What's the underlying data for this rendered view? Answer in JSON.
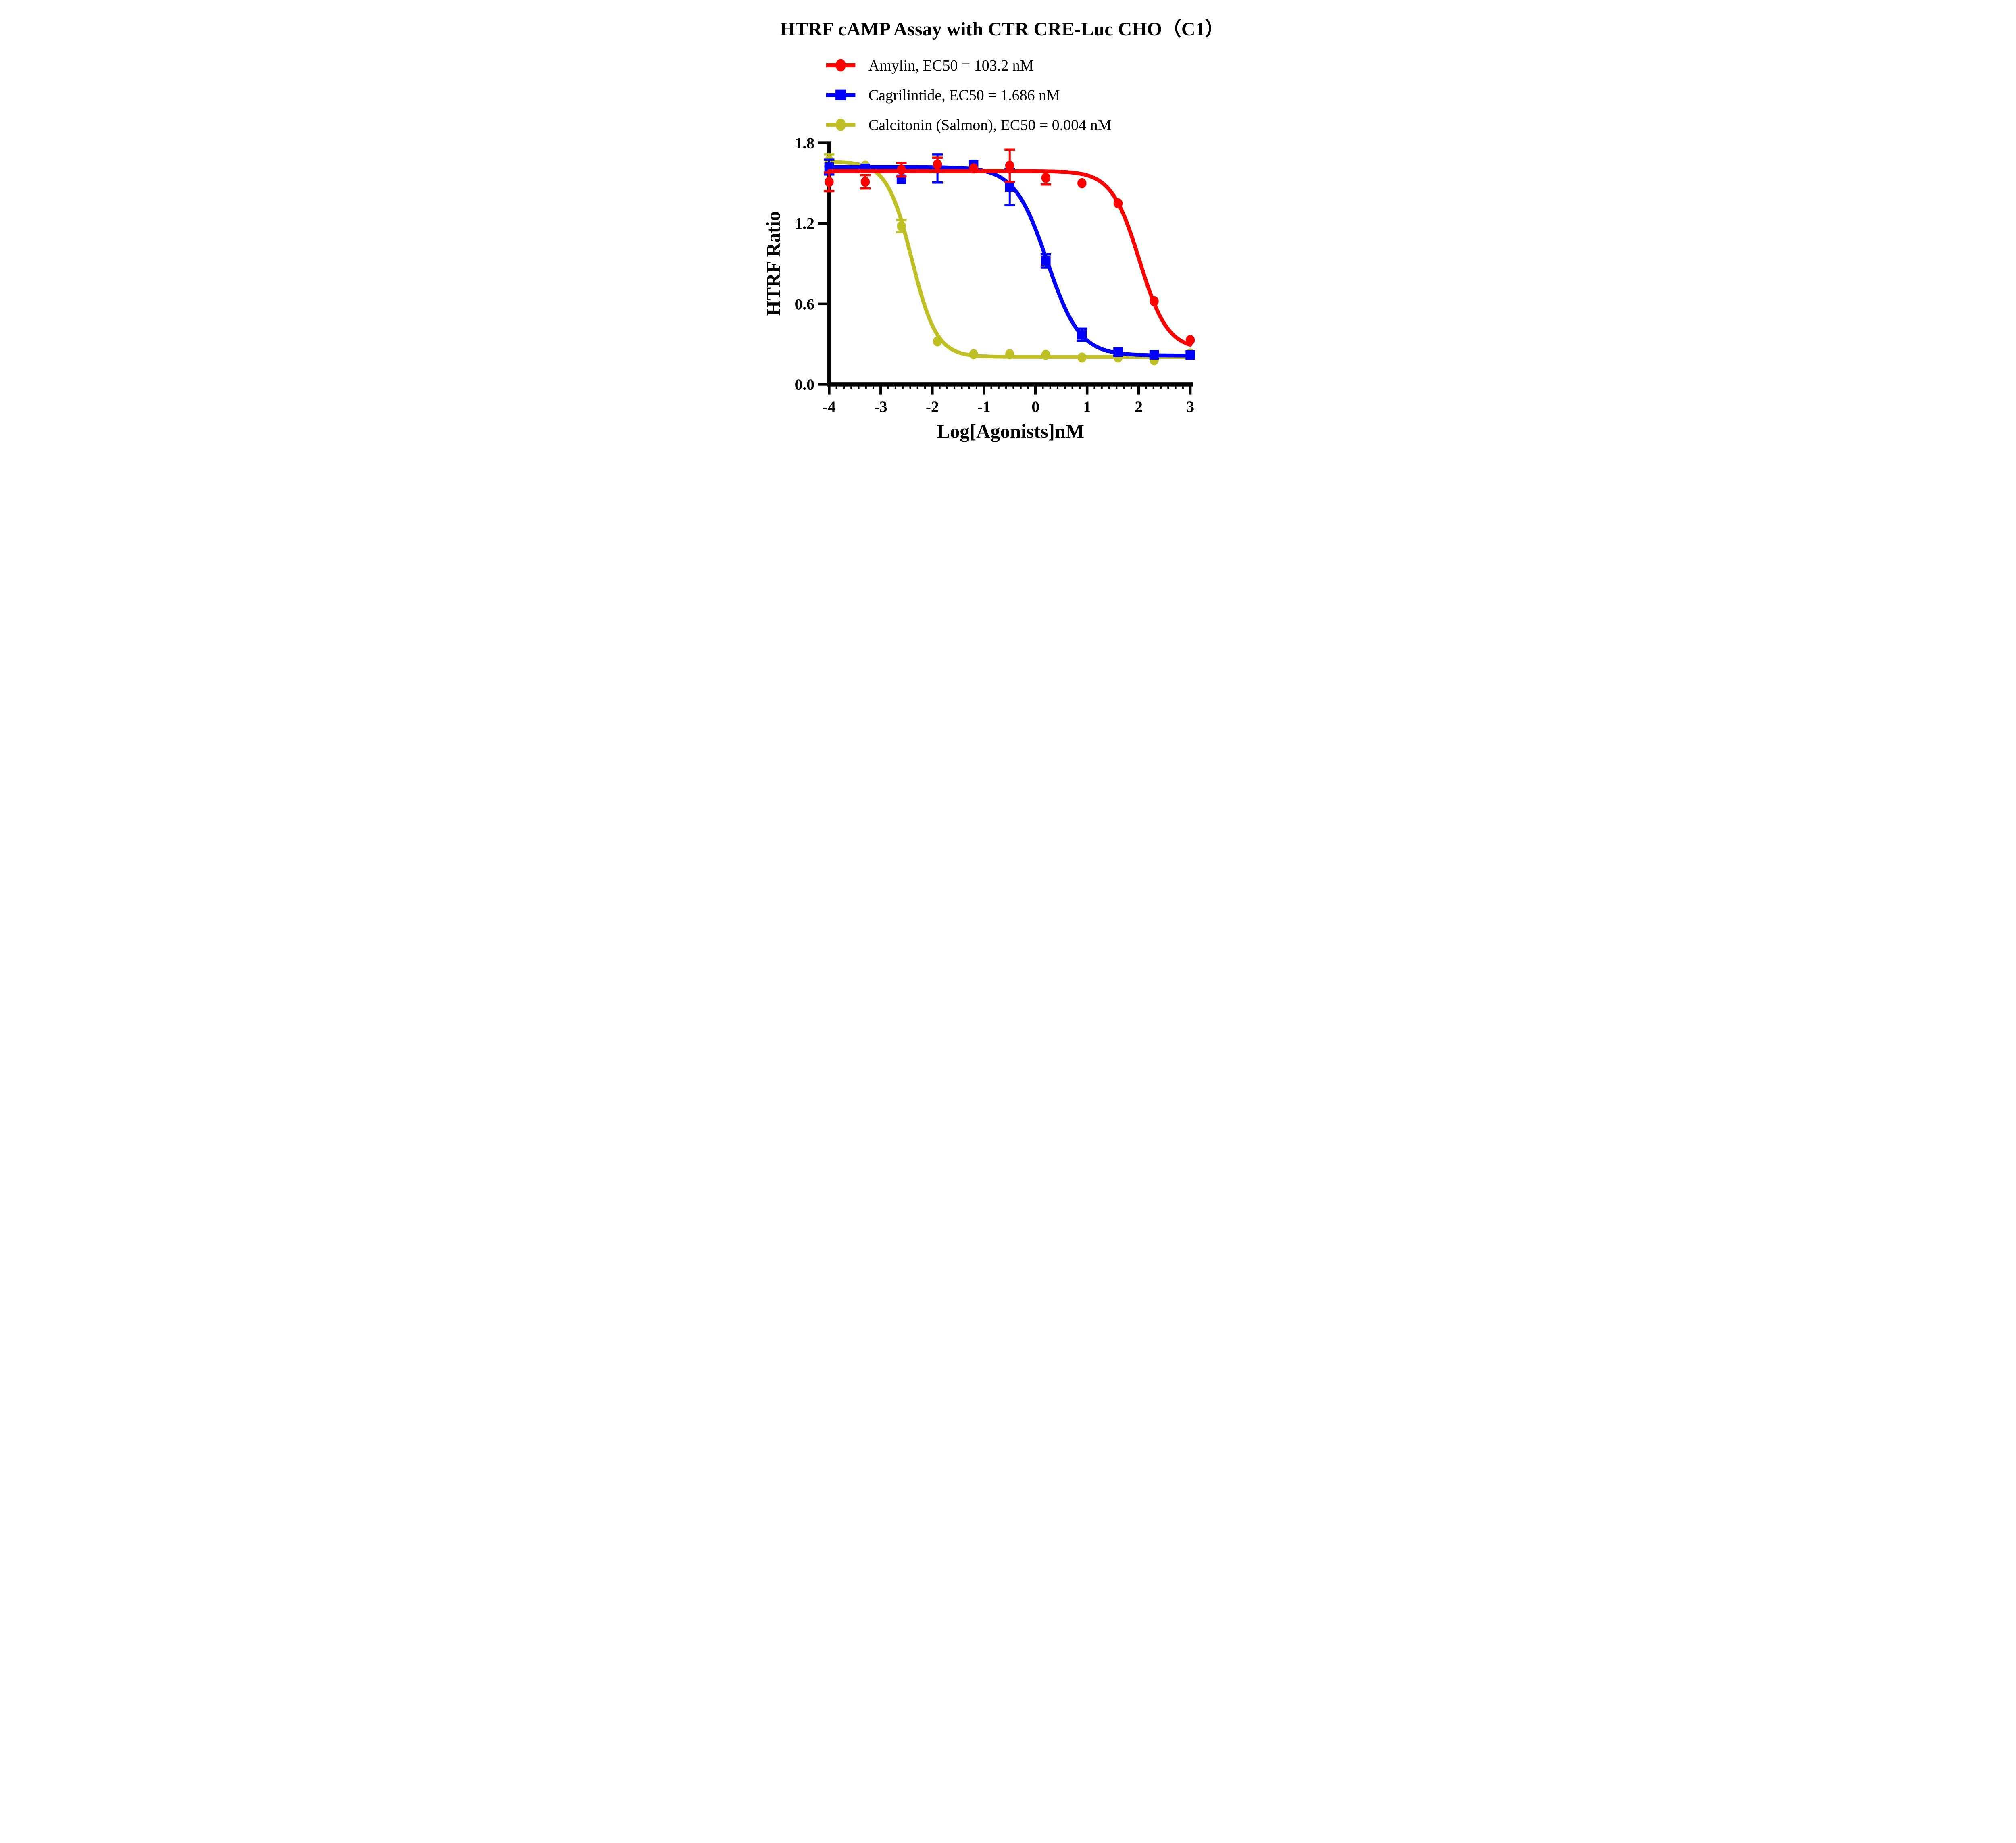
{
  "title": "HTRF cAMP Assay with CTR CRE-Luc CHO（C1）",
  "colors": {
    "amylin": "#FF0000",
    "cagrilintide": "#0000FF",
    "calcitonin_salmon": "#BFBF26",
    "axis": "#000000",
    "background": "#FFFFFF"
  },
  "chart_data": {
    "type": "line",
    "title": "HTRF cAMP Assay with CTR CRE-Luc CHO（C1）",
    "xlabel": "Log[Agonists]nM",
    "ylabel": "HTRF Ratio",
    "xlim": [
      -4,
      3
    ],
    "ylim": [
      0.0,
      1.8
    ],
    "grid": false,
    "legend_position": "top-left",
    "x_ticks": [
      {
        "v": -4,
        "label": "-4"
      },
      {
        "v": -3,
        "label": "-3"
      },
      {
        "v": -2,
        "label": "-2"
      },
      {
        "v": -1,
        "label": "-1"
      },
      {
        "v": 0,
        "label": "0"
      },
      {
        "v": 1,
        "label": "1"
      },
      {
        "v": 2,
        "label": "2"
      },
      {
        "v": 3,
        "label": "3"
      }
    ],
    "x_minor_divisions": 7,
    "y_ticks": [
      {
        "v": 0.0,
        "label": "0.0"
      },
      {
        "v": 0.6,
        "label": "0.6"
      },
      {
        "v": 1.2,
        "label": "1.2"
      },
      {
        "v": 1.8,
        "label": "1.8"
      }
    ],
    "x": [
      -4.0,
      -3.3,
      -2.6,
      -1.9,
      -1.2,
      -0.5,
      0.2,
      0.9,
      1.6,
      2.3,
      3.0
    ],
    "series": [
      {
        "name": "Amylin",
        "legend": "Amylin, EC50 = 103.2 nM",
        "ec50_nM": 103.2,
        "color": "#FF0000",
        "marker": "circle",
        "values": [
          1.51,
          1.51,
          1.6,
          1.64,
          1.61,
          1.63,
          1.54,
          1.5,
          1.35,
          0.62,
          0.33
        ],
        "errors": [
          0.07,
          0.05,
          0.05,
          0.05,
          0.02,
          0.12,
          0.05,
          0.015,
          0.015,
          0.015,
          0.015
        ],
        "fit": {
          "top": 1.59,
          "bottom": 0.26,
          "log_ec50": 2.014,
          "hill": 1.6
        }
      },
      {
        "name": "Cagrilintide",
        "legend": "Cagrilintide, EC50 = 1.686 nM",
        "ec50_nM": 1.686,
        "color": "#0000FF",
        "marker": "square",
        "values": [
          1.62,
          1.61,
          1.53,
          1.61,
          1.64,
          1.47,
          0.92,
          0.37,
          0.24,
          0.22,
          0.22
        ],
        "errors": [
          0.055,
          0.03,
          0.02,
          0.105,
          0.03,
          0.135,
          0.05,
          0.045,
          0.02,
          0.015,
          0.015
        ],
        "fit": {
          "top": 1.62,
          "bottom": 0.215,
          "log_ec50": 0.227,
          "hill": 1.37
        }
      },
      {
        "name": "Calcitonin (Salmon)",
        "legend": "Calcitonin (Salmon), EC50 = 0.004 nM",
        "ec50_nM": 0.004,
        "color": "#BFBF26",
        "marker": "circle",
        "values": [
          1.67,
          1.63,
          1.18,
          0.32,
          0.225,
          0.225,
          0.22,
          0.2,
          0.2,
          0.18,
          0.23
        ],
        "errors": [
          0.045,
          0.02,
          0.045,
          0.025,
          0.01,
          0.01,
          0.01,
          0.01,
          0.01,
          0.01,
          0.01
        ],
        "fit": {
          "top": 1.66,
          "bottom": 0.205,
          "log_ec50": -2.398,
          "hill": 1.8
        }
      }
    ]
  }
}
